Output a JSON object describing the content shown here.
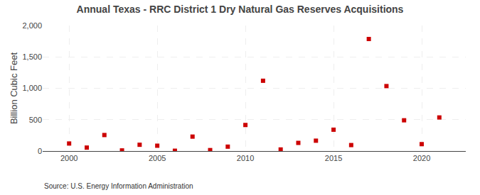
{
  "chart_data": {
    "type": "scatter",
    "title": "Annual Texas - RRC District 1 Dry Natural Gas Reserves Acquisitions",
    "ylabel": "Billion Cubic Feet",
    "annotations": [
      "Source: U.S. Energy Information Administration"
    ],
    "x": [
      2000,
      2001,
      2002,
      2003,
      2004,
      2005,
      2006,
      2007,
      2008,
      2009,
      2010,
      2011,
      2012,
      2013,
      2014,
      2015,
      2016,
      2017,
      2018,
      2019,
      2020,
      2021
    ],
    "values": [
      120,
      55,
      255,
      10,
      100,
      85,
      5,
      230,
      15,
      70,
      415,
      1120,
      25,
      130,
      165,
      340,
      95,
      1785,
      1035,
      490,
      110,
      535
    ],
    "color": "#cc0000",
    "marker": "square",
    "xlim": [
      1998.5,
      2022.5
    ],
    "xticks": [
      2000,
      2005,
      2010,
      2015,
      2020
    ],
    "ylim": [
      0,
      2000
    ],
    "yticks": [
      0,
      500,
      {
        "value": 1000,
        "label": "1,000"
      },
      {
        "value": 1500,
        "label": "1,500"
      },
      {
        "value": 2000,
        "label": "2,000"
      }
    ],
    "grid": true
  }
}
